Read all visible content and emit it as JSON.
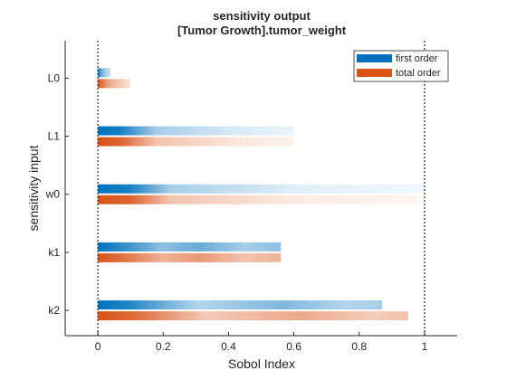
{
  "chart_data": {
    "type": "bar",
    "orientation": "horizontal",
    "title": [
      "sensitivity output",
      "[Tumor Growth].tumor_weight"
    ],
    "xlabel": "Sobol Index",
    "ylabel": "sensitivity input",
    "xlim": [
      -0.1,
      1.1
    ],
    "xticks": [
      0,
      0.2,
      0.4,
      0.6,
      0.8,
      1
    ],
    "xtick_labels": [
      "0",
      "0.2",
      "0.4",
      "0.6",
      "0.8",
      "1"
    ],
    "reference_lines_x": [
      0,
      1
    ],
    "categories": [
      "L0",
      "L1",
      "w0",
      "k1",
      "k2"
    ],
    "series": [
      {
        "name": "first order",
        "color": "#0072bd",
        "values": [
          0.04,
          0.6,
          1.0,
          0.56,
          0.87
        ]
      },
      {
        "name": "total order",
        "color": "#d95319",
        "values": [
          0.1,
          0.6,
          1.0,
          0.56,
          0.95
        ]
      }
    ],
    "legend_position": "top-right",
    "grid": false
  }
}
